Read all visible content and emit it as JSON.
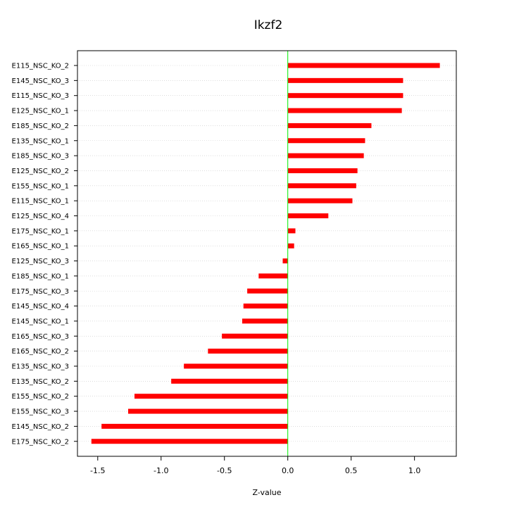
{
  "chart_data": {
    "type": "bar",
    "orientation": "horizontal",
    "title": "Ikzf2",
    "xlabel": "Z-value",
    "ylabel": "",
    "xlim": [
      -1.66,
      1.33
    ],
    "xticks": [
      -1.5,
      -1.0,
      -0.5,
      0.0,
      0.5,
      1.0
    ],
    "xtick_labels": [
      "-1.5",
      "-1.0",
      "-0.5",
      "0.0",
      "0.5",
      "1.0"
    ],
    "grid": true,
    "zero_line_color": "#00ee00",
    "bar_color": "#ff0000",
    "categories": [
      "E115_NSC_KO_2",
      "E145_NSC_KO_3",
      "E115_NSC_KO_3",
      "E125_NSC_KO_1",
      "E185_NSC_KO_2",
      "E135_NSC_KO_1",
      "E185_NSC_KO_3",
      "E125_NSC_KO_2",
      "E155_NSC_KO_1",
      "E115_NSC_KO_1",
      "E125_NSC_KO_4",
      "E175_NSC_KO_1",
      "E165_NSC_KO_1",
      "E125_NSC_KO_3",
      "E185_NSC_KO_1",
      "E175_NSC_KO_3",
      "E145_NSC_KO_4",
      "E145_NSC_KO_1",
      "E165_NSC_KO_3",
      "E165_NSC_KO_2",
      "E135_NSC_KO_3",
      "E135_NSC_KO_2",
      "E155_NSC_KO_2",
      "E155_NSC_KO_3",
      "E145_NSC_KO_2",
      "E175_NSC_KO_2"
    ],
    "values": [
      1.2,
      0.91,
      0.91,
      0.9,
      0.66,
      0.61,
      0.6,
      0.55,
      0.54,
      0.51,
      0.32,
      0.06,
      0.05,
      -0.04,
      -0.23,
      -0.32,
      -0.35,
      -0.36,
      -0.52,
      -0.63,
      -0.82,
      -0.92,
      -1.21,
      -1.26,
      -1.47,
      -1.55
    ]
  }
}
